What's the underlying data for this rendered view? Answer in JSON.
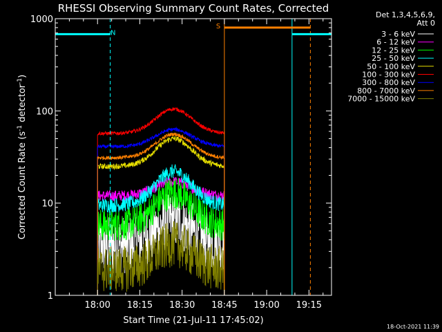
{
  "chart_data": {
    "type": "line",
    "title": "RHESSI Observing Summary Count Rates, Corrected",
    "xlabel": "Start Time (21-Jul-11 17:45:02)",
    "ylabel_main": "Corrected Count Rate (s",
    "ylabel_sup1": "-1",
    "ylabel_mid": " detector",
    "ylabel_sup2": "-1",
    "ylabel_end": ")",
    "x_range_minutes": [
      0,
      98
    ],
    "ylim": [
      1,
      1000
    ],
    "y_scale": "log",
    "x_ticks": [
      {
        "label": "18:00",
        "t": 15
      },
      {
        "label": "18:15",
        "t": 30
      },
      {
        "label": "18:30",
        "t": 45
      },
      {
        "label": "18:45",
        "t": 60
      },
      {
        "label": "19:00",
        "t": 75
      },
      {
        "label": "19:15",
        "t": 90
      }
    ],
    "y_ticks": [
      {
        "label": "1",
        "v": 1
      },
      {
        "label": "10",
        "v": 10
      },
      {
        "label": "100",
        "v": 100
      },
      {
        "label": "1000",
        "v": 1000
      }
    ],
    "legend_header": [
      "Det 1,3,4,5,6,9,",
      "Att 0"
    ],
    "series": [
      {
        "name": "3 - 6 keV",
        "color": "#ffffff",
        "base": 3.5,
        "peak": 6.5,
        "noise": 0.32
      },
      {
        "name": "6 - 12 keV",
        "color": "#ff00ff",
        "base": 12,
        "peak": 17,
        "noise": 0.06
      },
      {
        "name": "12 - 25 keV",
        "color": "#00ff00",
        "base": 5.8,
        "peak": 13,
        "noise": 0.18
      },
      {
        "name": "25 - 50 keV",
        "color": "#00ffff",
        "base": 9.5,
        "peak": 22,
        "noise": 0.08
      },
      {
        "name": "50 - 100 keV",
        "color": "#e8e000",
        "base": 25,
        "peak": 50,
        "noise": 0.03
      },
      {
        "name": "100 - 300 keV",
        "color": "#ff0000",
        "base": 57,
        "peak": 105,
        "noise": 0.02
      },
      {
        "name": "300 - 800 keV",
        "color": "#0000ff",
        "base": 41,
        "peak": 63,
        "noise": 0.02
      },
      {
        "name": "800 - 7000 keV",
        "color": "#ff8000",
        "base": 31,
        "peak": 56,
        "noise": 0.02
      },
      {
        "name": "7000 - 15000 keV",
        "color": "#808000",
        "base": 1.9,
        "peak": 3.6,
        "noise": 0.25
      }
    ],
    "data_interval_minutes": [
      15,
      60
    ],
    "peak_time_minutes": 42,
    "flag_bars": [
      {
        "label": "N",
        "color": "#00ffff",
        "level": 680,
        "segments": [
          [
            0,
            19.5
          ],
          [
            84,
            98
          ]
        ]
      },
      {
        "label": "S",
        "color": "#ff8000",
        "level": 800,
        "segments": [
          [
            60,
            90.5
          ]
        ]
      }
    ],
    "markers": [
      {
        "color": "#00ffff",
        "style": "solid",
        "t": 0
      },
      {
        "color": "#00ffff",
        "style": "dashed",
        "t": 19.5
      },
      {
        "color": "#ff8000",
        "style": "solid",
        "t": 60
      },
      {
        "color": "#00ffff",
        "style": "solid",
        "t": 84
      },
      {
        "color": "#ff8000",
        "style": "dashed",
        "t": 90.5
      },
      {
        "color": "#00ffff",
        "style": "dashed",
        "t": 98
      }
    ],
    "timestamp": "18-Oct-2021 11:39"
  }
}
